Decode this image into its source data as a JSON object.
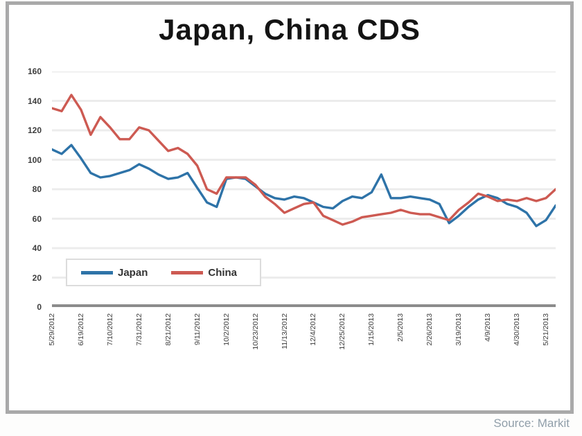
{
  "title": "Japan, China CDS",
  "source_credit": "Source: Markit",
  "legend": {
    "japan_label": "Japan",
    "china_label": "China"
  },
  "colors": {
    "japan_line": "#2e73a8",
    "china_line": "#cd5a52",
    "gridline": "#ececec",
    "axis_line": "#8c8c8c",
    "frame_border": "#a9a9a9",
    "title_text": "#141414",
    "tick_text": "#3d3d3d",
    "source_text": "#909ea9"
  },
  "chart_data": {
    "type": "line",
    "title": "Japan, China CDS",
    "grid": "horizontal",
    "legend_position": "inside bottom-left",
    "ylim": [
      0,
      160
    ],
    "y_ticks": [
      0,
      20,
      40,
      60,
      80,
      100,
      120,
      140,
      160
    ],
    "x_tick_labels": [
      "5/29/2012",
      "6/19/2012",
      "7/10/2012",
      "7/31/2012",
      "8/21/2012",
      "9/11/2012",
      "10/2/2012",
      "10/23/2012",
      "11/13/2012",
      "12/4/2012",
      "12/25/2012",
      "1/15/2013",
      "2/5/2013",
      "2/26/2013",
      "3/19/2013",
      "4/9/2013",
      "4/30/2013",
      "5/21/2013"
    ],
    "x_tick_weeks": [
      0,
      3,
      6,
      9,
      12,
      15,
      18,
      21,
      24,
      27,
      30,
      33,
      36,
      39,
      42,
      45,
      48,
      51
    ],
    "x_spacing": "weekly points, week index 0-52",
    "series": [
      {
        "name": "Japan",
        "color": "#2e73a8",
        "values": [
          107,
          104,
          110,
          101,
          91,
          88,
          89,
          91,
          93,
          97,
          94,
          90,
          87,
          88,
          91,
          81,
          71,
          68,
          87,
          88,
          87,
          82,
          77,
          74,
          73,
          75,
          74,
          71,
          68,
          67,
          72,
          75,
          74,
          78,
          90,
          74,
          74,
          75,
          74,
          73,
          70,
          57,
          62,
          68,
          73,
          76,
          74,
          70,
          68,
          64,
          55,
          59,
          69
        ]
      },
      {
        "name": "China",
        "color": "#cd5a52",
        "values": [
          135,
          133,
          144,
          134,
          117,
          129,
          122,
          114,
          114,
          122,
          120,
          113,
          106,
          108,
          104,
          96,
          80,
          77,
          88,
          88,
          88,
          83,
          75,
          70,
          64,
          67,
          70,
          71,
          62,
          59,
          56,
          58,
          61,
          62,
          63,
          64,
          66,
          64,
          63,
          63,
          61,
          59,
          66,
          71,
          77,
          75,
          72,
          73,
          72,
          74,
          72,
          74,
          80
        ]
      }
    ]
  }
}
